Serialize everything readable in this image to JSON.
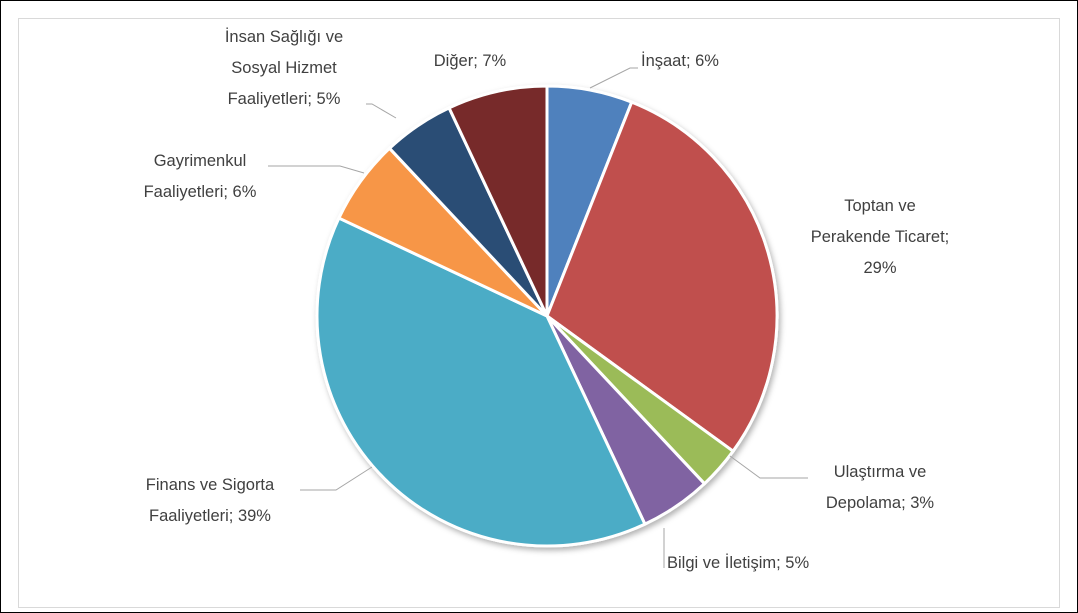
{
  "chart_data": {
    "type": "pie",
    "labels": [
      "İnşaat; 6%",
      "Toptan ve\nPerakende Ticaret;\n29%",
      "Ulaştırma ve\nDepolama; 3%",
      "Bilgi ve İletişim; 5%",
      "Finans ve Sigorta\nFaaliyetleri; 39%",
      "Gayrimenkul\nFaaliyetleri; 6%",
      "İnsan Sağlığı ve\nSosyal Hizmet\nFaaliyetleri; 5%",
      "Diğer; 7%"
    ],
    "values": [
      6,
      29,
      3,
      5,
      39,
      6,
      5,
      7
    ],
    "colors": [
      "#4f81bd",
      "#c0504d",
      "#9bbb59",
      "#8064a2",
      "#4bacc6",
      "#f79646",
      "#2c4d75",
      "#772c2a"
    ]
  }
}
